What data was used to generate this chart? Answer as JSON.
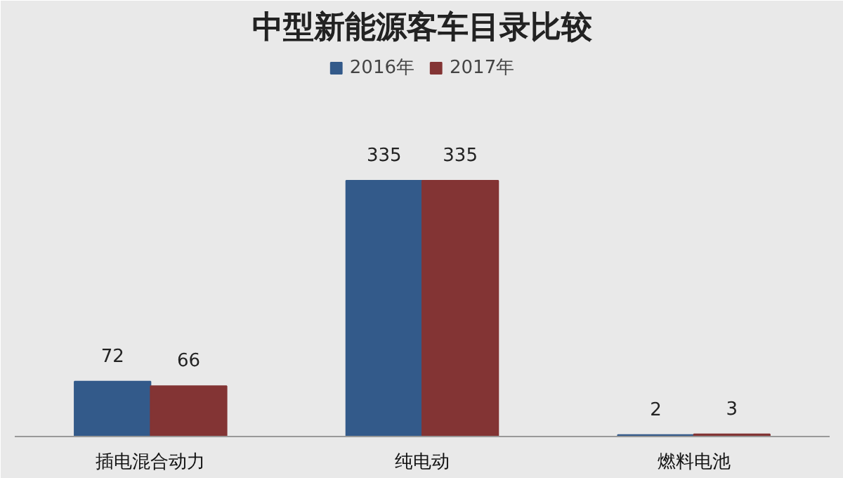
{
  "chart_data": {
    "type": "bar",
    "title": "中型新能源客车目录比较",
    "categories": [
      "插电混合动力",
      "纯电动",
      "燃料电池"
    ],
    "series": [
      {
        "name": "2016年",
        "color": "#335a8a",
        "values": [
          72,
          335,
          2
        ]
      },
      {
        "name": "2017年",
        "color": "#833434",
        "values": [
          66,
          335,
          3
        ]
      }
    ],
    "data_labels": true,
    "legend": "top"
  }
}
